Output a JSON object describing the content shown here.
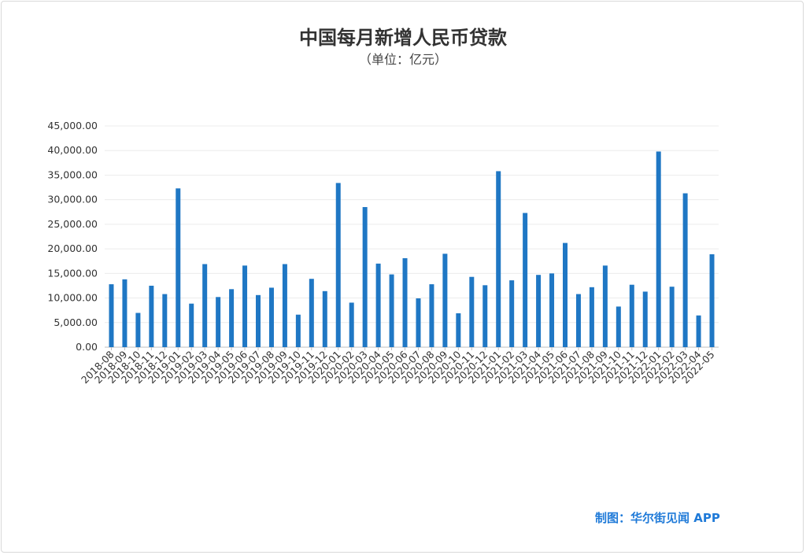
{
  "chart_data": {
    "type": "bar",
    "title": "中国每月新增人民币贷款",
    "subtitle": "（单位：亿元）",
    "xlabel": "",
    "ylabel": "",
    "ylim": [
      0,
      45000
    ],
    "yticks": [
      "45,000.00",
      "40,000.00",
      "35,000.00",
      "30,000.00",
      "25,000.00",
      "20,000.00",
      "15,000.00",
      "10,000.00",
      "5,000.00",
      "0.00"
    ],
    "grid": true,
    "bar_color": "#1f77c4",
    "categories": [
      "2018-08",
      "2018-09",
      "2018-10",
      "2018-11",
      "2018-12",
      "2019-01",
      "2019-02",
      "2019-03",
      "2019-04",
      "2019-05",
      "2019-06",
      "2019-07",
      "2019-08",
      "2019-09",
      "2019-10",
      "2019-11",
      "2019-12",
      "2020-01",
      "2020-02",
      "2020-03",
      "2020-04",
      "2020-05",
      "2020-06",
      "2020-07",
      "2020-08",
      "2020-09",
      "2020-10",
      "2020-11",
      "2020-12",
      "2021-01",
      "2021-02",
      "2021-03",
      "2021-04",
      "2021-05",
      "2021-06",
      "2021-07",
      "2021-08",
      "2021-09",
      "2021-10",
      "2021-11",
      "2021-12",
      "2022-01",
      "2022-02",
      "2022-03",
      "2022-04",
      "2022-05"
    ],
    "values": [
      12800,
      13800,
      6970,
      12500,
      10800,
      32300,
      8858,
      16900,
      10200,
      11800,
      16600,
      10600,
      12100,
      16900,
      6613,
      13900,
      11400,
      33400,
      9057,
      28500,
      17000,
      14800,
      18100,
      9927,
      12800,
      19000,
      6898,
      14300,
      12600,
      35800,
      13600,
      27300,
      14700,
      15000,
      21200,
      10800,
      12200,
      16600,
      8262,
      12700,
      11300,
      39800,
      12300,
      31300,
      6454,
      18900
    ]
  },
  "credit": "制图：华尔街见闻 APP"
}
